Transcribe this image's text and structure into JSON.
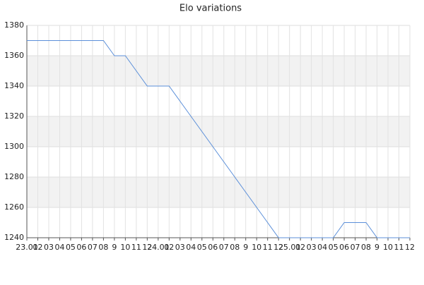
{
  "chart_data": {
    "type": "line",
    "title": "Elo variations",
    "categories": [
      "23.01",
      "02",
      "03",
      "04",
      "05",
      "06",
      "07",
      "08",
      "9",
      "10",
      "11",
      "12",
      "24.01",
      "02",
      "03",
      "04",
      "05",
      "06",
      "07",
      "08",
      "9",
      "10",
      "11",
      "12",
      "25.01",
      "02",
      "03",
      "04",
      "05",
      "06",
      "07",
      "08",
      "9",
      "10",
      "11",
      "12"
    ],
    "series": [
      {
        "color": "#5b8fd9",
        "values": [
          1370,
          1370,
          1370,
          1370,
          1370,
          1370,
          1370,
          1370,
          1360,
          1360,
          1350,
          1340,
          1340,
          1340,
          1330,
          1320,
          1310,
          1300,
          1290,
          1280,
          1270,
          1260,
          1250,
          1240,
          1240,
          1240,
          1240,
          1240,
          1240,
          1250,
          1250,
          1250,
          1240,
          1240,
          1240,
          1240
        ]
      }
    ],
    "ylim": [
      1240,
      1380
    ],
    "yticks": [
      1240,
      1260,
      1280,
      1300,
      1320,
      1340,
      1360,
      1380
    ],
    "grid": true,
    "bands": true
  }
}
